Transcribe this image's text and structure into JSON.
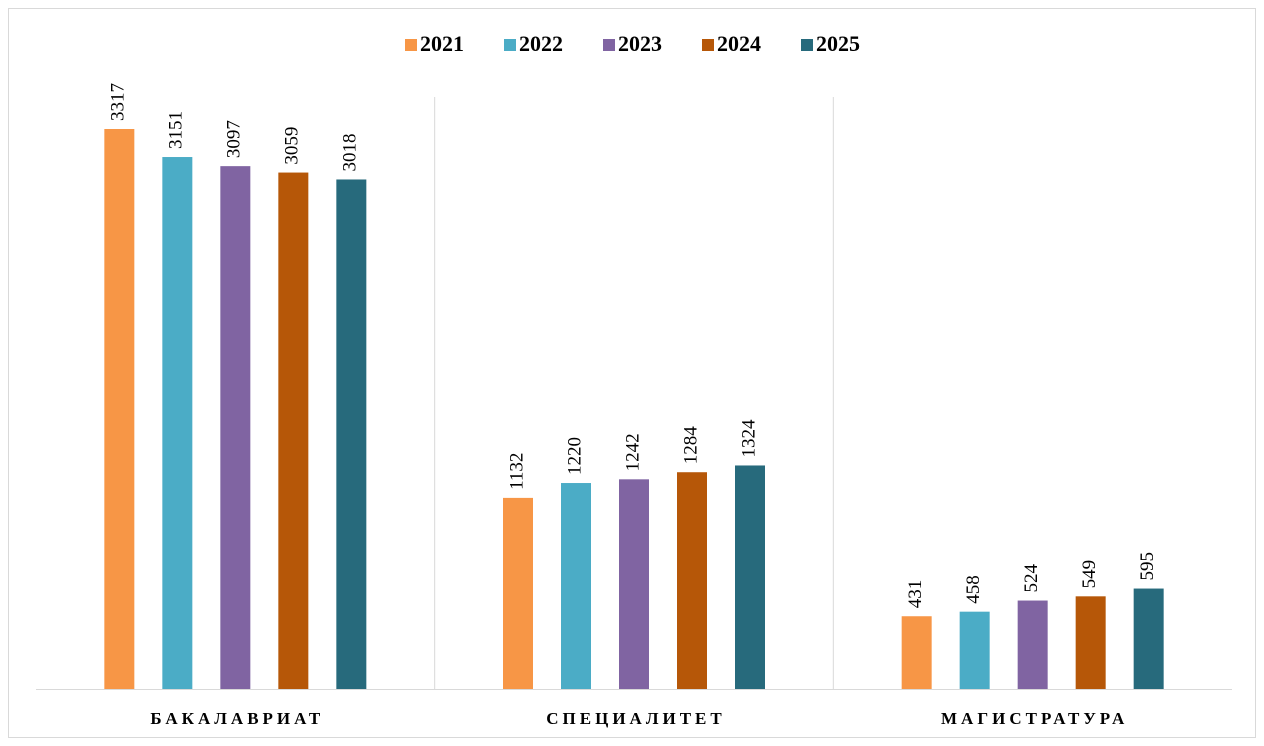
{
  "chart_data": {
    "type": "bar",
    "categories": [
      "БАКАЛАВРИАТ",
      "СПЕЦИАЛИТЕТ",
      "МАГИСТРАТУРА"
    ],
    "series": [
      {
        "name": "2021",
        "color": "#f79646",
        "values": [
          3317,
          1132,
          431
        ]
      },
      {
        "name": "2022",
        "color": "#4bacc6",
        "values": [
          3151,
          1220,
          458
        ]
      },
      {
        "name": "2023",
        "color": "#8064a2",
        "values": [
          3097,
          1242,
          524
        ]
      },
      {
        "name": "2024",
        "color": "#b65708",
        "values": [
          3059,
          1284,
          549
        ]
      },
      {
        "name": "2025",
        "color": "#276a7c",
        "values": [
          3018,
          1324,
          595
        ]
      }
    ],
    "legend": "top"
  }
}
